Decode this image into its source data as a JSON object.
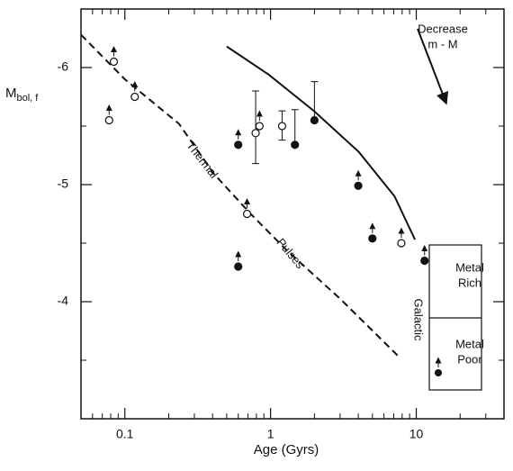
{
  "chart_data": {
    "type": "scatter",
    "xlabel": "Age (Gyrs)",
    "ylabel": {
      "main": "M",
      "sub": "bol, f"
    },
    "xscale": "log",
    "xlim": [
      0.05,
      40
    ],
    "xticks": [
      0.1,
      1,
      10
    ],
    "xminorticks": [
      0.06,
      0.07,
      0.08,
      0.09,
      0.2,
      0.3,
      0.4,
      0.5,
      0.6,
      0.7,
      0.8,
      0.9,
      2,
      3,
      4,
      5,
      6,
      7,
      8,
      9,
      20,
      30
    ],
    "ylim": [
      -6.5,
      -3
    ],
    "y_inverted": true,
    "yticks": [
      -6,
      -5,
      -4
    ],
    "yminorticks": [
      -5.5,
      -4.5,
      -3.5
    ],
    "color": "#111111",
    "series": [
      {
        "marker": "open",
        "x": [
          0.078,
          0.084,
          0.117,
          0.69,
          0.79,
          0.84,
          1.2,
          7.9
        ],
        "y": [
          -5.55,
          -6.05,
          -5.75,
          -4.75,
          -5.44,
          -5.5,
          -5.5,
          -4.5
        ],
        "lower_limit": [
          true,
          true,
          true,
          true,
          false,
          true,
          false,
          true
        ],
        "y_err_top": [
          null,
          null,
          null,
          null,
          -5.8,
          null,
          -5.63,
          null
        ],
        "y_err_bottom": [
          null,
          null,
          null,
          null,
          -5.18,
          null,
          -5.38,
          null
        ]
      },
      {
        "marker": "filled",
        "x": [
          0.6,
          0.6,
          1.47,
          2.0,
          4.0,
          5.0,
          11.4
        ],
        "y": [
          -5.34,
          -4.3,
          -5.34,
          -5.55,
          -4.99,
          -4.54,
          -4.35
        ],
        "lower_limit": [
          true,
          true,
          false,
          false,
          true,
          true,
          true
        ],
        "y_err_top": [
          null,
          null,
          -5.64,
          -5.88,
          null,
          null,
          null
        ],
        "y_err_bottom": [
          null,
          null,
          null,
          null,
          null,
          null,
          null
        ]
      }
    ],
    "lines": [
      {
        "style": "solid",
        "x": [
          0.5,
          0.97,
          1.98,
          4.03,
          7.1,
          9.8
        ],
        "y": [
          -6.18,
          -5.94,
          -5.63,
          -5.28,
          -4.9,
          -4.53
        ]
      },
      {
        "style": "dashed",
        "x": [
          0.05,
          0.1,
          0.235,
          0.41,
          0.73,
          1.29,
          3.03,
          7.6
        ],
        "y": [
          -6.28,
          -5.9,
          -5.52,
          -5.09,
          -4.75,
          -4.44,
          -4.02,
          -3.53
        ]
      }
    ],
    "annotations": {
      "thermal": "Thermal",
      "pulses": "Pulses",
      "decrease": "Decrease",
      "distance": "m - M"
    },
    "legend_box": {
      "label": "Galactic",
      "rich": [
        "Metal",
        "Rich"
      ],
      "poor": [
        "Metal",
        "Poor"
      ]
    }
  }
}
